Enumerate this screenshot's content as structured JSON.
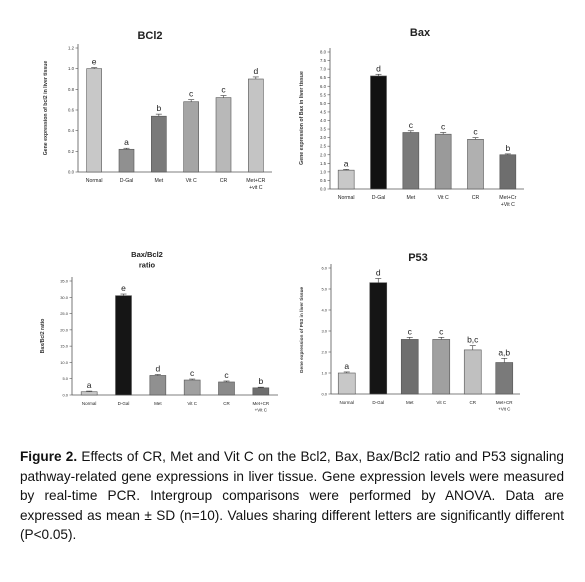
{
  "chart_data": [
    {
      "type": "bar",
      "title": "BCl2",
      "ylabel": "Gene expression of bcl2 in liver tissue",
      "categories": [
        "Normal",
        "D-Gal",
        "Met",
        "Vit C",
        "CR",
        "Met+CR +vit C"
      ],
      "values": [
        1.0,
        0.22,
        0.54,
        0.68,
        0.72,
        0.9
      ],
      "errors": [
        0.01,
        0.01,
        0.02,
        0.02,
        0.02,
        0.02
      ],
      "letters": [
        "e",
        "a",
        "b",
        "c",
        "c",
        "d"
      ],
      "ylim": [
        0,
        1.2
      ],
      "yticks": [
        "0.0",
        "0.2",
        "0.4",
        "0.6",
        "0.8",
        "1.0",
        "1.2"
      ],
      "colors": [
        "#c8c8c8",
        "#909090",
        "#7a7a7a",
        "#a5a5a5",
        "#b8b8b8",
        "#c4c4c4"
      ],
      "grid": false
    },
    {
      "type": "bar",
      "title": "Bax",
      "ylabel": "Gene expression of Bax in liver tissue",
      "categories": [
        "Normal",
        "D-Gal",
        "Met",
        "Vit C",
        "CR",
        "Met+Cr +Vit C"
      ],
      "values": [
        1.1,
        6.6,
        3.3,
        3.2,
        2.9,
        2.0
      ],
      "errors": [
        0.05,
        0.1,
        0.1,
        0.1,
        0.1,
        0.05
      ],
      "letters": [
        "a",
        "d",
        "c",
        "c",
        "c",
        "b"
      ],
      "ylim": [
        0,
        8.0
      ],
      "yticks": [
        "0.0",
        "0.5",
        "1.0",
        "1.5",
        "2.0",
        "2.5",
        "3.0",
        "3.5",
        "4.0",
        "4.5",
        "5.0",
        "5.5",
        "6.0",
        "6.5",
        "7.0",
        "7.5",
        "8.0"
      ],
      "colors": [
        "#c8c8c8",
        "#111111",
        "#7a7a7a",
        "#9a9a9a",
        "#b0b0b0",
        "#6e6e6e"
      ],
      "grid": false
    },
    {
      "type": "bar",
      "title": "Bax/Bcl2 ratio",
      "ylabel": "Bax/Bcl2 ratio",
      "categories": [
        "Normal",
        "D-Gal",
        "Met",
        "Vit C",
        "CR",
        "Met+CR +Vit C"
      ],
      "values": [
        1.0,
        30.5,
        6.0,
        4.6,
        4.0,
        2.2
      ],
      "errors": [
        0.2,
        0.5,
        0.3,
        0.3,
        0.3,
        0.2
      ],
      "letters": [
        "a",
        "e",
        "d",
        "c",
        "c",
        "b"
      ],
      "ylim": [
        0,
        35
      ],
      "yticks": [
        "0.0",
        "5.0",
        "10.0",
        "15.0",
        "20.0",
        "25.0",
        "30.0",
        "35.0"
      ],
      "colors": [
        "#c8c8c8",
        "#151515",
        "#909090",
        "#a0a0a0",
        "#8a8a8a",
        "#6e6e6e"
      ],
      "grid": false
    },
    {
      "type": "bar",
      "title": "P53",
      "ylabel": "Gene expression of P53 in liver tissue",
      "categories": [
        "Normal",
        "D-Gal",
        "Met",
        "Vit C",
        "CR",
        "Met+CR +Vit C"
      ],
      "values": [
        1.0,
        5.3,
        2.6,
        2.6,
        2.1,
        1.5
      ],
      "errors": [
        0.05,
        0.2,
        0.1,
        0.1,
        0.2,
        0.2
      ],
      "letters": [
        "a",
        "d",
        "c",
        "c",
        "b,c",
        "a,b"
      ],
      "ylim": [
        0,
        6.0
      ],
      "yticks": [
        "0.0",
        "1.0",
        "2.0",
        "3.0",
        "4.0",
        "5.0",
        "6.0"
      ],
      "colors": [
        "#c8c8c8",
        "#151515",
        "#6e6e6e",
        "#a0a0a0",
        "#c0c0c0",
        "#7a7a7a"
      ],
      "grid": false
    }
  ],
  "caption": {
    "label": "Figure 2.",
    "text": " Effects of CR, Met and Vit C on the Bcl2, Bax, Bax/Bcl2 ratio and P53 signaling pathway-related gene expressions in liver tissue. Gene expression levels were measured by real-time PCR. Intergroup comparisons were performed by ANOVA. Data are expressed as mean ± SD (n=10). Values sharing different letters are significantly different (P<0.05)."
  }
}
